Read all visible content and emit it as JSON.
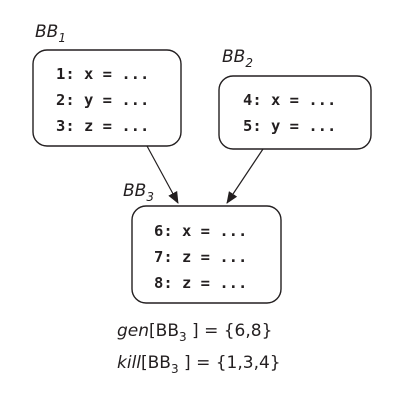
{
  "blocks": [
    {
      "label": "BB",
      "sub": "1",
      "lines": [
        "1: x = ...",
        "2: y = ...",
        "3: z = ..."
      ]
    },
    {
      "label": "BB",
      "sub": "2",
      "lines": [
        "4: x = ...",
        "5: y = ..."
      ]
    },
    {
      "label": "BB",
      "sub": "3",
      "lines": [
        "6: x = ...",
        "7: z = ...",
        "8: z = ..."
      ]
    }
  ],
  "edges": [
    {
      "from": "BB1",
      "to": "BB3"
    },
    {
      "from": "BB2",
      "to": "BB3"
    }
  ],
  "gen": {
    "name": "gen",
    "open": "[BB",
    "sub": "3",
    "close": " ] = {6,8}"
  },
  "kill": {
    "name": "kill",
    "open": "[BB",
    "sub": "3",
    "close": " ] = {1,3,4}"
  }
}
